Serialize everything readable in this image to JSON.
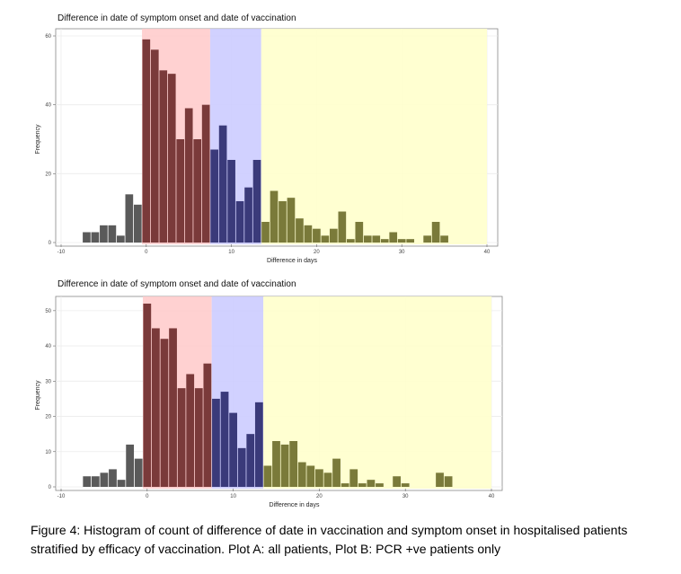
{
  "caption": "Figure 4: Histogram of count of difference of date in vaccination and symptom onset in hospitalised patients stratified by efficacy of vaccination. Plot A: all patients, Plot B: PCR +ve patients only",
  "colors": {
    "band_pre": "#ffcccc",
    "band_mid": "#ccccff",
    "band_post": "#ffffcc",
    "bar_grey": "#5a5a5a",
    "bar_red": "#7a3a3a",
    "bar_blue": "#3a3a7a",
    "bar_olive": "#7a7a3a"
  },
  "chart_data": [
    {
      "type": "bar",
      "title": "Difference in date of symptom onset and date of vaccination",
      "xlabel": "Difference in days",
      "ylabel": "Frequency",
      "xlim": [
        -10,
        40
      ],
      "ylim": [
        0,
        60
      ],
      "xticks": [
        "-10",
        "0",
        "10",
        "20",
        "30",
        "40"
      ],
      "yticks": [
        "0",
        "20",
        "40",
        "60"
      ],
      "grid": true,
      "bands": [
        {
          "from": -0.5,
          "to": 7.5,
          "color_key": "band_pre"
        },
        {
          "from": 7.5,
          "to": 13.5,
          "color_key": "band_mid"
        },
        {
          "from": 13.5,
          "to": 40,
          "color_key": "band_post"
        }
      ],
      "x": [
        -7,
        -6,
        -5,
        -4,
        -3,
        -2,
        -1,
        0,
        1,
        2,
        3,
        4,
        5,
        6,
        7,
        8,
        9,
        10,
        11,
        12,
        13,
        14,
        15,
        16,
        17,
        18,
        19,
        20,
        21,
        22,
        23,
        24,
        25,
        26,
        27,
        28,
        29,
        30,
        31,
        32,
        33,
        34,
        35
      ],
      "values": [
        3,
        3,
        5,
        5,
        2,
        14,
        11,
        59,
        56,
        50,
        49,
        30,
        39,
        30,
        40,
        27,
        34,
        24,
        12,
        16,
        24,
        6,
        15,
        12,
        13,
        7,
        5,
        4,
        2,
        4,
        9,
        1,
        6,
        2,
        2,
        1,
        3,
        1,
        1,
        0,
        2,
        6,
        2
      ]
    },
    {
      "type": "bar",
      "title": "Difference in date of symptom onset and date of vaccination",
      "xlabel": "Difference in days",
      "ylabel": "Frequency",
      "xlim": [
        -10,
        40
      ],
      "ylim": [
        0,
        52
      ],
      "xticks": [
        "-10",
        "0",
        "10",
        "20",
        "30",
        "40"
      ],
      "yticks": [
        "0",
        "10",
        "20",
        "30",
        "40",
        "50"
      ],
      "grid": true,
      "bands": [
        {
          "from": -0.5,
          "to": 7.5,
          "color_key": "band_pre"
        },
        {
          "from": 7.5,
          "to": 13.5,
          "color_key": "band_mid"
        },
        {
          "from": 13.5,
          "to": 40,
          "color_key": "band_post"
        }
      ],
      "x": [
        -7,
        -6,
        -5,
        -4,
        -3,
        -2,
        -1,
        0,
        1,
        2,
        3,
        4,
        5,
        6,
        7,
        8,
        9,
        10,
        11,
        12,
        13,
        14,
        15,
        16,
        17,
        18,
        19,
        20,
        21,
        22,
        23,
        24,
        25,
        26,
        27,
        28,
        29,
        30,
        31,
        32,
        33,
        34,
        35
      ],
      "values": [
        3,
        3,
        4,
        5,
        2,
        12,
        8,
        52,
        45,
        42,
        45,
        28,
        32,
        28,
        35,
        25,
        27,
        21,
        11,
        15,
        24,
        6,
        13,
        12,
        13,
        7,
        6,
        5,
        4,
        8,
        1,
        5,
        1,
        2,
        1,
        0,
        3,
        1,
        0,
        0,
        0,
        4,
        3
      ]
    }
  ]
}
